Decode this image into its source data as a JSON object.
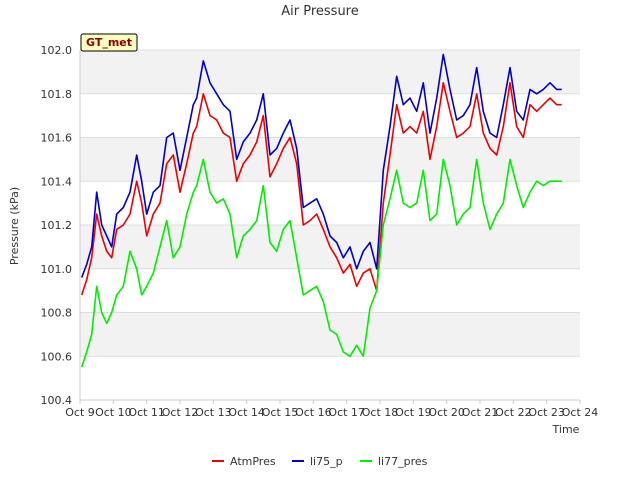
{
  "chart_data": {
    "type": "line",
    "title": "Air Pressure",
    "xlabel": "Time",
    "ylabel": "Pressure (kPa)",
    "badge": "GT_met",
    "ylim": [
      100.4,
      102.0
    ],
    "xlim": [
      0,
      15
    ],
    "yticks": [
      "100.4",
      "100.6",
      "100.8",
      "101.0",
      "101.2",
      "101.4",
      "101.6",
      "101.8",
      "102.0"
    ],
    "xticks": [
      "Oct 9",
      "Oct 10",
      "Oct 11",
      "Oct 12",
      "Oct 13",
      "Oct 14",
      "Oct 15",
      "Oct 16",
      "Oct 17",
      "Oct 18",
      "Oct 19",
      "Oct 20",
      "Oct 21",
      "Oct 22",
      "Oct 23",
      "Oct 24"
    ],
    "grid": true,
    "legend_position": "bottom",
    "series": [
      {
        "name": "AtmPres",
        "color": "#ee0000",
        "x": [
          0.05,
          0.2,
          0.35,
          0.5,
          0.65,
          0.8,
          0.95,
          1.1,
          1.3,
          1.5,
          1.7,
          1.85,
          2.0,
          2.2,
          2.4,
          2.6,
          2.8,
          3.0,
          3.2,
          3.4,
          3.5,
          3.7,
          3.9,
          4.1,
          4.3,
          4.5,
          4.7,
          4.9,
          5.1,
          5.3,
          5.5,
          5.7,
          5.9,
          6.1,
          6.3,
          6.5,
          6.7,
          6.9,
          7.1,
          7.3,
          7.5,
          7.7,
          7.9,
          8.1,
          8.3,
          8.5,
          8.7,
          8.9,
          9.1,
          9.3,
          9.5,
          9.7,
          9.9,
          10.1,
          10.3,
          10.5,
          10.7,
          10.9,
          11.1,
          11.3,
          11.5,
          11.7,
          11.9,
          12.1,
          12.3,
          12.5,
          12.7,
          12.9,
          13.1,
          13.3,
          13.5,
          13.7,
          13.9,
          14.1,
          14.3,
          14.45
        ],
        "y": [
          100.88,
          100.95,
          101.05,
          101.25,
          101.15,
          101.08,
          101.05,
          101.18,
          101.2,
          101.25,
          101.4,
          101.3,
          101.15,
          101.25,
          101.3,
          101.48,
          101.52,
          101.35,
          101.48,
          101.62,
          101.65,
          101.8,
          101.7,
          101.68,
          101.62,
          101.6,
          101.4,
          101.48,
          101.52,
          101.58,
          101.7,
          101.42,
          101.48,
          101.55,
          101.6,
          101.48,
          101.2,
          101.22,
          101.25,
          101.18,
          101.1,
          101.05,
          100.98,
          101.02,
          100.92,
          100.98,
          101.0,
          100.9,
          101.3,
          101.52,
          101.75,
          101.62,
          101.65,
          101.62,
          101.72,
          101.5,
          101.65,
          101.85,
          101.72,
          101.6,
          101.62,
          101.65,
          101.8,
          101.62,
          101.55,
          101.52,
          101.65,
          101.85,
          101.65,
          101.6,
          101.75,
          101.72,
          101.75,
          101.78,
          101.75,
          101.75
        ]
      },
      {
        "name": "li75_p",
        "color": "#0000cc",
        "x": [
          0.05,
          0.2,
          0.35,
          0.5,
          0.65,
          0.8,
          0.95,
          1.1,
          1.3,
          1.5,
          1.7,
          1.85,
          2.0,
          2.2,
          2.4,
          2.6,
          2.8,
          3.0,
          3.2,
          3.4,
          3.5,
          3.7,
          3.9,
          4.1,
          4.3,
          4.5,
          4.7,
          4.9,
          5.1,
          5.3,
          5.5,
          5.7,
          5.9,
          6.1,
          6.3,
          6.5,
          6.7,
          6.9,
          7.1,
          7.3,
          7.5,
          7.7,
          7.9,
          8.1,
          8.3,
          8.5,
          8.7,
          8.9,
          9.1,
          9.3,
          9.5,
          9.7,
          9.9,
          10.1,
          10.3,
          10.5,
          10.7,
          10.9,
          11.1,
          11.3,
          11.5,
          11.7,
          11.9,
          12.1,
          12.3,
          12.5,
          12.7,
          12.9,
          13.1,
          13.3,
          13.5,
          13.7,
          13.9,
          14.1,
          14.3,
          14.45
        ],
        "y": [
          100.96,
          101.02,
          101.1,
          101.35,
          101.2,
          101.15,
          101.1,
          101.25,
          101.28,
          101.35,
          101.52,
          101.4,
          101.25,
          101.35,
          101.38,
          101.6,
          101.62,
          101.45,
          101.6,
          101.75,
          101.78,
          101.95,
          101.85,
          101.8,
          101.75,
          101.72,
          101.5,
          101.58,
          101.62,
          101.68,
          101.8,
          101.52,
          101.55,
          101.62,
          101.68,
          101.55,
          101.28,
          101.3,
          101.32,
          101.25,
          101.15,
          101.12,
          101.05,
          101.1,
          101.0,
          101.08,
          101.12,
          101.0,
          101.45,
          101.65,
          101.88,
          101.75,
          101.78,
          101.72,
          101.85,
          101.62,
          101.78,
          101.98,
          101.82,
          101.68,
          101.7,
          101.75,
          101.92,
          101.72,
          101.62,
          101.6,
          101.75,
          101.92,
          101.72,
          101.68,
          101.82,
          101.8,
          101.82,
          101.85,
          101.82,
          101.82
        ]
      },
      {
        "name": "li77_pres",
        "color": "#00ee00",
        "x": [
          0.05,
          0.2,
          0.35,
          0.5,
          0.65,
          0.8,
          0.95,
          1.1,
          1.3,
          1.5,
          1.7,
          1.85,
          2.0,
          2.2,
          2.4,
          2.6,
          2.8,
          3.0,
          3.2,
          3.4,
          3.5,
          3.7,
          3.9,
          4.1,
          4.3,
          4.5,
          4.7,
          4.9,
          5.1,
          5.3,
          5.5,
          5.7,
          5.9,
          6.1,
          6.3,
          6.5,
          6.7,
          6.9,
          7.1,
          7.3,
          7.5,
          7.7,
          7.9,
          8.1,
          8.3,
          8.5,
          8.7,
          8.9,
          9.1,
          9.3,
          9.5,
          9.7,
          9.9,
          10.1,
          10.3,
          10.5,
          10.7,
          10.9,
          11.1,
          11.3,
          11.5,
          11.7,
          11.9,
          12.1,
          12.3,
          12.5,
          12.7,
          12.9,
          13.1,
          13.3,
          13.5,
          13.7,
          13.9,
          14.1,
          14.3,
          14.45
        ],
        "y": [
          100.55,
          100.62,
          100.7,
          100.92,
          100.8,
          100.75,
          100.8,
          100.88,
          100.92,
          101.08,
          101.0,
          100.88,
          100.92,
          100.98,
          101.1,
          101.22,
          101.05,
          101.1,
          101.25,
          101.35,
          101.38,
          101.5,
          101.35,
          101.3,
          101.32,
          101.25,
          101.05,
          101.15,
          101.18,
          101.22,
          101.38,
          101.12,
          101.08,
          101.18,
          101.22,
          101.05,
          100.88,
          100.9,
          100.92,
          100.85,
          100.72,
          100.7,
          100.62,
          100.6,
          100.65,
          100.6,
          100.82,
          100.9,
          101.2,
          101.32,
          101.45,
          101.3,
          101.28,
          101.3,
          101.45,
          101.22,
          101.25,
          101.5,
          101.38,
          101.2,
          101.25,
          101.28,
          101.5,
          101.3,
          101.18,
          101.25,
          101.3,
          101.5,
          101.38,
          101.28,
          101.35,
          101.4,
          101.38,
          101.4,
          101.4,
          101.4
        ]
      }
    ]
  }
}
